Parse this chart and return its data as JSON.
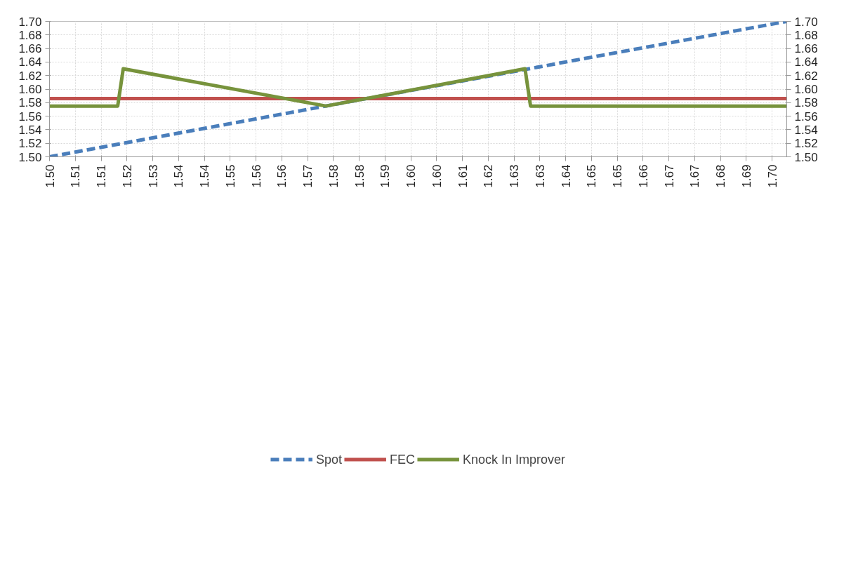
{
  "chart_data": {
    "type": "line",
    "xlim": [
      1.5,
      1.7
    ],
    "ylim": [
      1.5,
      1.7
    ],
    "y2lim": [
      1.5,
      1.7
    ],
    "xticks": [
      {
        "value": 1.5,
        "label": "1.50"
      },
      {
        "value": 1.507,
        "label": "1.51"
      },
      {
        "value": 1.514,
        "label": "1.51"
      },
      {
        "value": 1.521,
        "label": "1.52"
      },
      {
        "value": 1.528,
        "label": "1.53"
      },
      {
        "value": 1.535,
        "label": "1.54"
      },
      {
        "value": 1.542,
        "label": "1.54"
      },
      {
        "value": 1.549,
        "label": "1.55"
      },
      {
        "value": 1.556,
        "label": "1.56"
      },
      {
        "value": 1.563,
        "label": "1.56"
      },
      {
        "value": 1.57,
        "label": "1.57"
      },
      {
        "value": 1.577,
        "label": "1.58"
      },
      {
        "value": 1.584,
        "label": "1.58"
      },
      {
        "value": 1.591,
        "label": "1.59"
      },
      {
        "value": 1.598,
        "label": "1.60"
      },
      {
        "value": 1.605,
        "label": "1.60"
      },
      {
        "value": 1.612,
        "label": "1.61"
      },
      {
        "value": 1.619,
        "label": "1.62"
      },
      {
        "value": 1.626,
        "label": "1.63"
      },
      {
        "value": 1.633,
        "label": "1.63"
      },
      {
        "value": 1.64,
        "label": "1.64"
      },
      {
        "value": 1.647,
        "label": "1.65"
      },
      {
        "value": 1.654,
        "label": "1.65"
      },
      {
        "value": 1.661,
        "label": "1.66"
      },
      {
        "value": 1.668,
        "label": "1.67"
      },
      {
        "value": 1.675,
        "label": "1.67"
      },
      {
        "value": 1.682,
        "label": "1.68"
      },
      {
        "value": 1.689,
        "label": "1.69"
      },
      {
        "value": 1.696,
        "label": "1.70"
      }
    ],
    "yticks": [
      {
        "value": 1.5,
        "label": "1.50"
      },
      {
        "value": 1.52,
        "label": "1.52"
      },
      {
        "value": 1.54,
        "label": "1.54"
      },
      {
        "value": 1.56,
        "label": "1.56"
      },
      {
        "value": 1.58,
        "label": "1.58"
      },
      {
        "value": 1.6,
        "label": "1.60"
      },
      {
        "value": 1.62,
        "label": "1.62"
      },
      {
        "value": 1.64,
        "label": "1.64"
      },
      {
        "value": 1.66,
        "label": "1.66"
      },
      {
        "value": 1.68,
        "label": "1.68"
      },
      {
        "value": 1.7,
        "label": "1.70"
      }
    ],
    "y2ticks": [
      {
        "value": 1.5,
        "label": "1.50"
      },
      {
        "value": 1.52,
        "label": "1.52"
      },
      {
        "value": 1.54,
        "label": "1.54"
      },
      {
        "value": 1.56,
        "label": "1.56"
      },
      {
        "value": 1.58,
        "label": "1.58"
      },
      {
        "value": 1.6,
        "label": "1.60"
      },
      {
        "value": 1.62,
        "label": "1.62"
      },
      {
        "value": 1.64,
        "label": "1.64"
      },
      {
        "value": 1.66,
        "label": "1.66"
      },
      {
        "value": 1.68,
        "label": "1.68"
      },
      {
        "value": 1.7,
        "label": "1.70"
      }
    ],
    "grid": true,
    "legend": "bottom",
    "marker": "none",
    "series": [
      {
        "name": "Spot",
        "color": "#4a7ebb",
        "line_style": "dashed",
        "x": [
          1.5,
          1.7
        ],
        "values": [
          1.5,
          1.7
        ]
      },
      {
        "name": "FEC",
        "color": "#c0504d",
        "line_style": "solid",
        "x": [
          1.5,
          1.7
        ],
        "values": [
          1.586,
          1.586
        ]
      },
      {
        "name": "Knock In Improver",
        "color": "#77933c",
        "line_style": "solid",
        "x": [
          1.5,
          1.5185,
          1.52,
          1.575,
          1.629,
          1.6305,
          1.7
        ],
        "values": [
          1.575,
          1.575,
          1.63,
          1.575,
          1.63,
          1.575,
          1.575
        ]
      }
    ]
  }
}
